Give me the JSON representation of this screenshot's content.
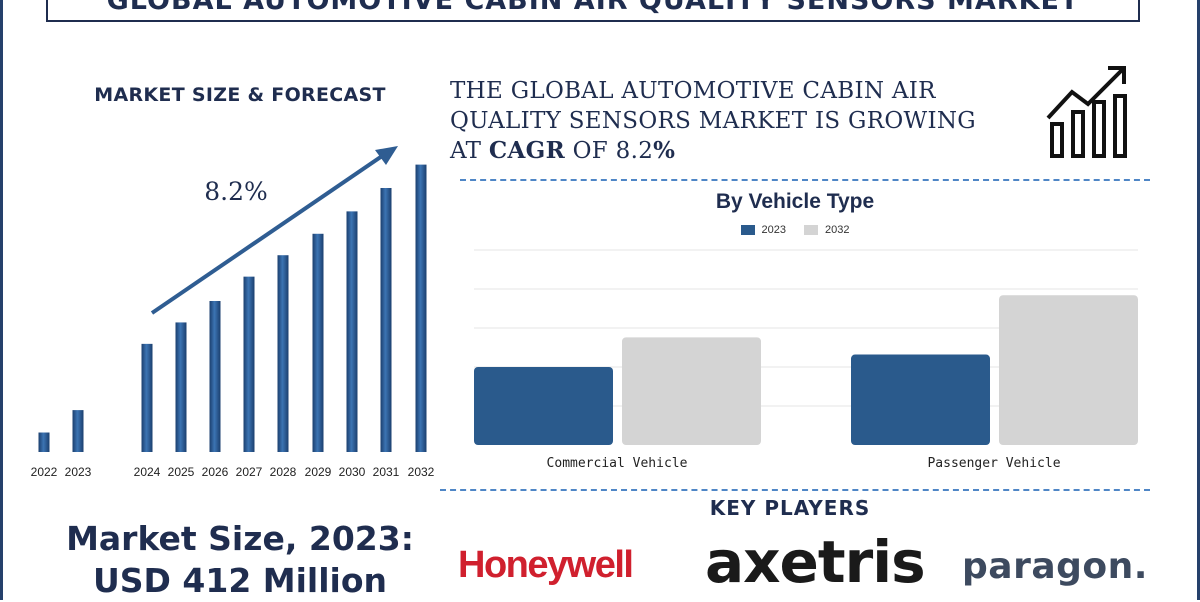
{
  "title": "GLOBAL AUTOMOTIVE CABIN AIR QUALITY SENSORS MARKET",
  "forecast": {
    "heading": "MARKET SIZE & FORECAST",
    "cagr_label": "8.2%"
  },
  "headline": {
    "line1": "THE GLOBAL  AUTOMOTIVE CABIN AIR",
    "line2": "QUALITY SENSORS  MARKET IS GROWING",
    "prefix": "AT ",
    "cagr_word": "CAGR",
    "of": " OF  8.2",
    "percent": "%"
  },
  "vehicle_type": {
    "title": "By Vehicle Type"
  },
  "key_players": {
    "heading": "KEY PLAYERS",
    "logos": [
      "Honeywell",
      "axetris",
      "paragon."
    ]
  },
  "market_size": {
    "line1": "Market Size, 2023:",
    "line2": "USD 412 Million"
  },
  "icons": [
    "growth-chart-icon"
  ],
  "colors": {
    "navy": "#1f2d4f",
    "bar_blue": "#2a5a8c",
    "bar_grey": "#d4d4d4",
    "accent_dash": "#4f86c6"
  },
  "chart_data": [
    {
      "type": "bar",
      "title": "MARKET SIZE & FORECAST",
      "categories": [
        "2022",
        "2023",
        "2024",
        "2025",
        "2026",
        "2027",
        "2028",
        "2029",
        "2030",
        "2031",
        "2032"
      ],
      "values": [
        20,
        43,
        111,
        133,
        155,
        180,
        202,
        224,
        247,
        271,
        295
      ],
      "ylim": [
        0,
        310
      ],
      "annotation": "8.2%",
      "grid": false,
      "legend": "none"
    },
    {
      "type": "bar",
      "title": "By Vehicle Type",
      "categories": [
        "Commercial Vehicle",
        "Passenger Vehicle"
      ],
      "series": [
        {
          "name": "2023",
          "values": [
            100,
            116
          ]
        },
        {
          "name": "2032",
          "values": [
            138,
            192
          ]
        }
      ],
      "ylim": [
        0,
        250
      ],
      "grid": true,
      "legend": "top-center"
    }
  ]
}
